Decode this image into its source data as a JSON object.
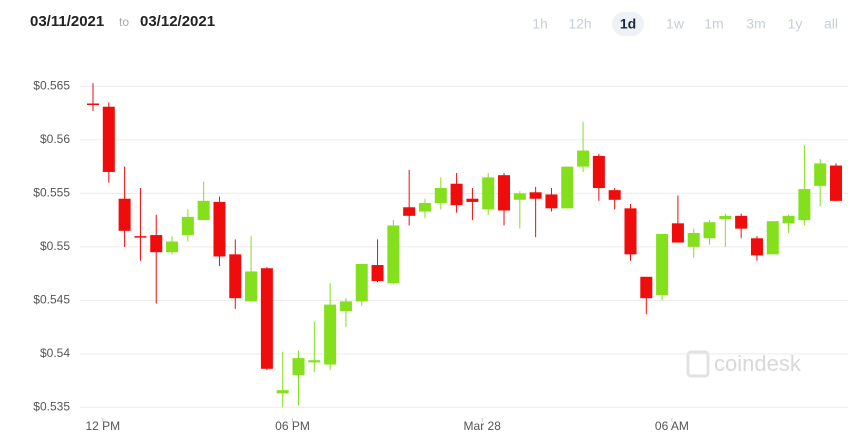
{
  "toolbar": {
    "date_from": "03/11/2021",
    "separator": "to",
    "date_to": "03/12/2021",
    "ranges": [
      "1h",
      "12h",
      "1d",
      "1w",
      "1m",
      "3m",
      "1y",
      "all"
    ],
    "selected": "1d"
  },
  "chart_data": {
    "type": "candlestick",
    "watermark": "coindesk",
    "categories": [
      null,
      "12 PM",
      null,
      null,
      null,
      null,
      null,
      null,
      null,
      null,
      null,
      null,
      null,
      "06 PM",
      null,
      null,
      null,
      null,
      null,
      null,
      null,
      null,
      null,
      null,
      null,
      "Mar 28",
      null,
      null,
      null,
      null,
      null,
      null,
      null,
      null,
      null,
      null,
      null,
      "06 AM",
      null,
      null,
      null,
      null,
      null,
      null,
      null,
      null,
      null,
      null
    ],
    "open": [
      0.5634,
      0.5631,
      0.5545,
      0.551,
      0.5511,
      0.5495,
      0.5511,
      0.5525,
      0.5542,
      0.5493,
      0.5449,
      0.548,
      0.5363,
      0.538,
      0.5392,
      0.539,
      0.544,
      0.5449,
      0.5483,
      0.5466,
      0.5537,
      0.5533,
      0.5541,
      0.5559,
      0.5545,
      0.5535,
      0.5567,
      0.5544,
      0.5551,
      0.5549,
      0.5536,
      0.5575,
      0.5585,
      0.5553,
      0.5536,
      0.5472,
      0.5455,
      0.5522,
      0.55,
      0.5508,
      0.5526,
      0.5529,
      0.5508,
      0.5493,
      0.5522,
      0.5525,
      0.5557,
      0.5576
    ],
    "high": [
      0.5653,
      0.5635,
      0.5575,
      0.5555,
      0.553,
      0.551,
      0.5535,
      0.5561,
      0.5547,
      0.5507,
      0.551,
      0.5481,
      0.5402,
      0.5403,
      0.543,
      0.5466,
      0.5452,
      0.5484,
      0.5507,
      0.5525,
      0.5572,
      0.5545,
      0.5565,
      0.5569,
      0.5555,
      0.5569,
      0.5569,
      0.5552,
      0.5556,
      0.5555,
      0.5575,
      0.5617,
      0.5587,
      0.5555,
      0.554,
      0.5472,
      0.5512,
      0.5548,
      0.5517,
      0.5525,
      0.5531,
      0.5531,
      0.551,
      0.5524,
      0.553,
      0.5595,
      0.5582,
      0.5578
    ],
    "low": [
      0.5627,
      0.556,
      0.55,
      0.5487,
      0.5447,
      0.5493,
      0.5505,
      0.5525,
      0.5482,
      0.5442,
      0.5449,
      0.5385,
      0.535,
      0.5352,
      0.5383,
      0.5385,
      0.5425,
      0.5445,
      0.5467,
      0.5465,
      0.552,
      0.5527,
      0.5535,
      0.5532,
      0.5525,
      0.553,
      0.552,
      0.5517,
      0.5509,
      0.5533,
      0.5536,
      0.557,
      0.5543,
      0.5535,
      0.5487,
      0.5437,
      0.545,
      0.5504,
      0.549,
      0.5502,
      0.55,
      0.5508,
      0.5487,
      0.5493,
      0.5513,
      0.552,
      0.5538,
      0.5543
    ],
    "close": [
      0.5633,
      0.557,
      0.5515,
      0.5509,
      0.5495,
      0.5505,
      0.5528,
      0.5543,
      0.5491,
      0.5452,
      0.5477,
      0.5386,
      0.5366,
      0.5396,
      0.5394,
      0.5446,
      0.5449,
      0.5484,
      0.5468,
      0.552,
      0.5529,
      0.5541,
      0.5555,
      0.5539,
      0.5542,
      0.5565,
      0.5534,
      0.555,
      0.5545,
      0.5536,
      0.5575,
      0.559,
      0.5555,
      0.5544,
      0.5493,
      0.5452,
      0.5512,
      0.5504,
      0.5513,
      0.5523,
      0.5529,
      0.5517,
      0.5492,
      0.5524,
      0.5529,
      0.5554,
      0.5578,
      0.5543
    ],
    "up_color": "#84e01c",
    "down_color": "#ee0c0c",
    "ylim": [
      0.534,
      0.567
    ],
    "yticks": [
      {
        "value": 0.535,
        "label": "$0.535"
      },
      {
        "value": 0.54,
        "label": "$0.54"
      },
      {
        "value": 0.545,
        "label": "$0.545"
      },
      {
        "value": 0.55,
        "label": "$0.55"
      },
      {
        "value": 0.555,
        "label": "$0.555"
      },
      {
        "value": 0.56,
        "label": "$0.56"
      },
      {
        "value": 0.565,
        "label": "$0.565"
      }
    ],
    "grid": true
  }
}
